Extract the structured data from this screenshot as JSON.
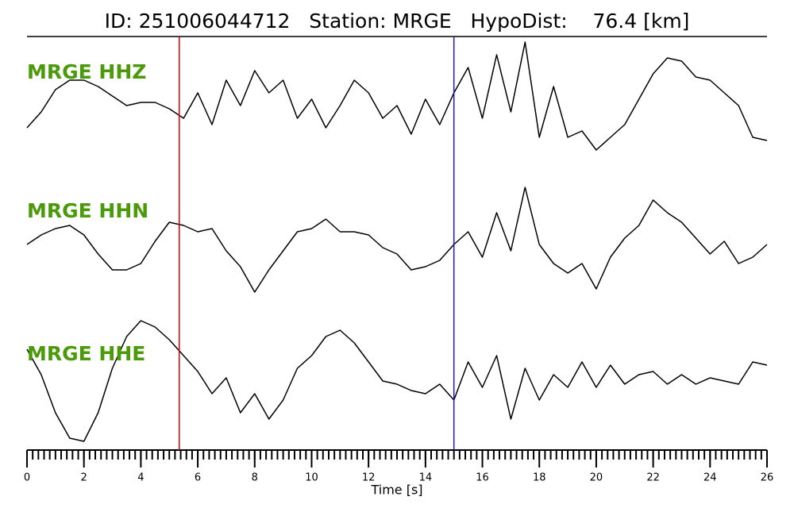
{
  "chart_data": {
    "type": "line",
    "title": "ID: 251006044712   Station: MRGE   HypoDist:    76.4 [km]",
    "xlabel": "Time [s]",
    "xlim": [
      0,
      26
    ],
    "xticks": [
      0,
      2,
      4,
      6,
      8,
      10,
      12,
      14,
      16,
      18,
      20,
      22,
      24,
      26
    ],
    "minor_tick_interval": 0.2,
    "ylim": [
      -1,
      1
    ],
    "label_color": "#4a9a0a",
    "markers": [
      {
        "x": 5.35,
        "color": "#e00000"
      },
      {
        "x": 15.0,
        "color": "#1a1acc"
      }
    ],
    "x": [
      0,
      0.5,
      1,
      1.5,
      2,
      2.5,
      3,
      3.5,
      4,
      4.5,
      5,
      5.5,
      6,
      6.5,
      7,
      7.5,
      8,
      8.5,
      9,
      9.5,
      10,
      10.5,
      11,
      11.5,
      12,
      12.5,
      13,
      13.5,
      14,
      14.5,
      15,
      15.5,
      16,
      16.5,
      17,
      17.5,
      18,
      18.5,
      19,
      19.5,
      20,
      20.5,
      21,
      21.5,
      22,
      22.5,
      23,
      23.5,
      24,
      24.5,
      25,
      25.5,
      26
    ],
    "series": [
      {
        "name": "MRGE HHZ",
        "color": "#000000",
        "values": [
          -0.45,
          -0.2,
          0.15,
          0.3,
          0.3,
          0.2,
          0.05,
          -0.1,
          -0.05,
          -0.05,
          -0.15,
          -0.3,
          0.1,
          -0.4,
          0.3,
          -0.1,
          0.45,
          0.1,
          0.3,
          -0.3,
          0,
          -0.45,
          -0.1,
          0.3,
          0.1,
          -0.3,
          -0.1,
          -0.55,
          0,
          -0.4,
          0.1,
          0.5,
          -0.3,
          0.7,
          -0.2,
          0.9,
          -0.6,
          0.2,
          -0.6,
          -0.5,
          -0.8,
          -0.6,
          -0.4,
          0,
          0.4,
          0.65,
          0.6,
          0.35,
          0.3,
          0.1,
          -0.1,
          -0.6,
          -0.65
        ]
      },
      {
        "name": "MRGE HHN",
        "color": "#000000",
        "values": [
          -0.1,
          0.05,
          0.15,
          0.2,
          0.05,
          -0.25,
          -0.5,
          -0.5,
          -0.4,
          -0.05,
          0.25,
          0.2,
          0.1,
          0.15,
          -0.2,
          -0.45,
          -0.85,
          -0.5,
          -0.2,
          0.1,
          0.15,
          0.3,
          0.1,
          0.1,
          0.05,
          -0.15,
          -0.25,
          -0.5,
          -0.45,
          -0.35,
          -0.1,
          0.1,
          -0.3,
          0.4,
          -0.2,
          0.8,
          -0.1,
          -0.4,
          -0.55,
          -0.4,
          -0.8,
          -0.3,
          0,
          0.2,
          0.6,
          0.4,
          0.25,
          0,
          -0.25,
          -0.05,
          -0.4,
          -0.3,
          -0.1
        ]
      },
      {
        "name": "MRGE HHE",
        "color": "#000000",
        "values": [
          0.5,
          0.1,
          -0.5,
          -0.9,
          -0.95,
          -0.5,
          0.2,
          0.7,
          0.95,
          0.85,
          0.65,
          0.4,
          0.15,
          -0.2,
          0.05,
          -0.5,
          -0.2,
          -0.6,
          -0.3,
          0.2,
          0.4,
          0.7,
          0.8,
          0.6,
          0.3,
          0,
          -0.05,
          -0.15,
          -0.2,
          -0.05,
          -0.3,
          0.3,
          -0.1,
          0.4,
          -0.6,
          0.2,
          -0.3,
          0.1,
          -0.1,
          0.3,
          -0.1,
          0.25,
          -0.05,
          0.1,
          0.15,
          -0.05,
          0.1,
          -0.05,
          0.05,
          0,
          -0.05,
          0.3,
          0.25
        ]
      }
    ]
  }
}
